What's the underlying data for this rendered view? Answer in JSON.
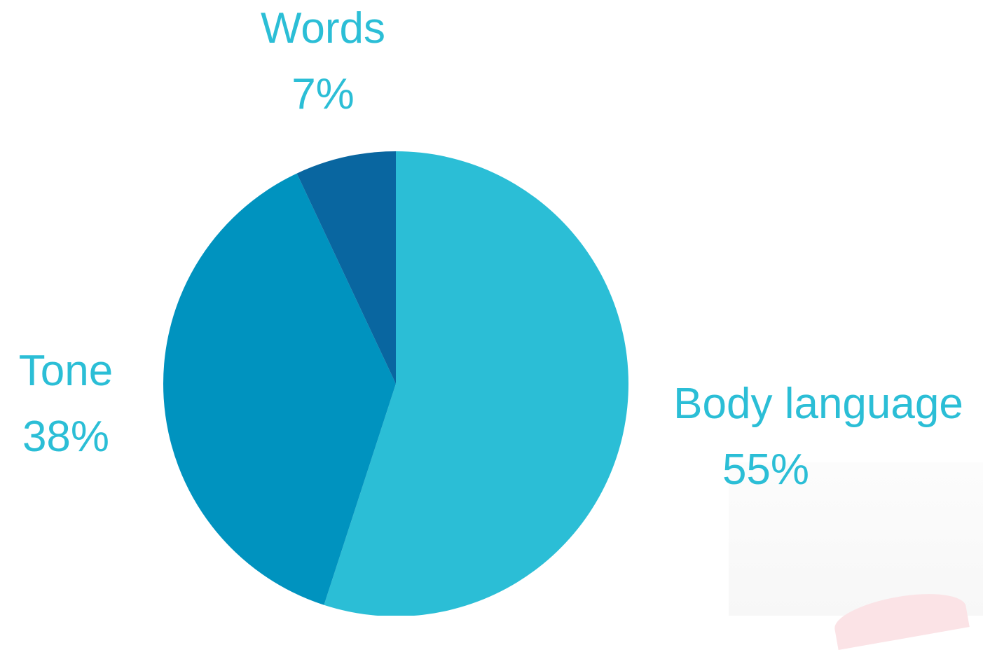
{
  "chart_data": {
    "type": "pie",
    "slices": [
      {
        "label": "Body language",
        "value": 55,
        "value_label": "55%",
        "color": "#2bbed6"
      },
      {
        "label": "Tone",
        "value": 38,
        "value_label": "38%",
        "color": "#0093bf"
      },
      {
        "label": "Words",
        "value": 7,
        "value_label": "7%",
        "color": "#0966a0"
      }
    ],
    "start_angle_deg": 0,
    "direction": "clockwise",
    "label_color": "#2bbed6",
    "legend": "none"
  }
}
